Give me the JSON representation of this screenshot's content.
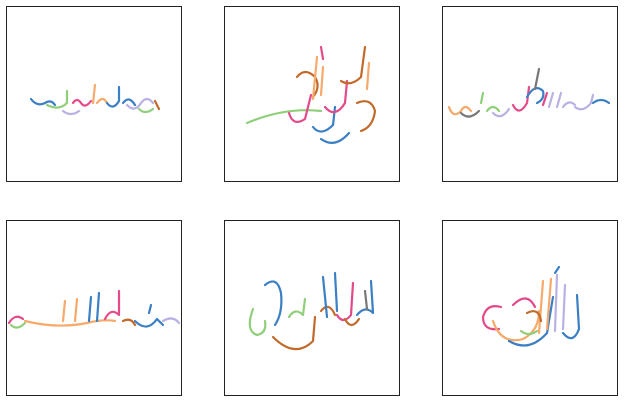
{
  "palette": {
    "blue": "#3b7fc4",
    "orange": "#f6a96a",
    "green": "#8fcf7a",
    "pink": "#e44a8a",
    "brown": "#c26a2a",
    "lavender": "#b9b0e3",
    "gray": "#777777",
    "teal": "#4aa3d6"
  },
  "panels": [
    {
      "id": 1,
      "style": "compact-horizontal"
    },
    {
      "id": 2,
      "style": "stacked-diagonal"
    },
    {
      "id": 3,
      "style": "horizontal-loop"
    },
    {
      "id": 4,
      "style": "wide-horizontal"
    },
    {
      "id": 5,
      "style": "tall-vertical"
    },
    {
      "id": 6,
      "style": "circular-compact"
    }
  ]
}
